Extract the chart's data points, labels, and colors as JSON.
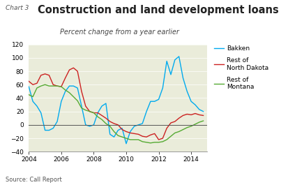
{
  "title": "Construction and land development loans",
  "chart_label": "Chart 3",
  "subtitle": "Percent change from a year earlier",
  "source": "Source: Call Report",
  "background_color": "#eaecda",
  "ylim": [
    -40,
    120
  ],
  "yticks": [
    -40,
    -20,
    0,
    20,
    40,
    60,
    80,
    100,
    120
  ],
  "xlim": [
    2004.0,
    2015.0
  ],
  "xticks": [
    2004,
    2006,
    2008,
    2010,
    2012,
    2014
  ],
  "colors": {
    "bakken": "#00aaee",
    "nd": "#cc2222",
    "mt": "#55aa33"
  },
  "bakken_x": [
    2004.0,
    2004.25,
    2004.5,
    2004.75,
    2005.0,
    2005.25,
    2005.5,
    2005.75,
    2006.0,
    2006.25,
    2006.5,
    2006.75,
    2007.0,
    2007.25,
    2007.5,
    2007.75,
    2008.0,
    2008.25,
    2008.5,
    2008.75,
    2009.0,
    2009.25,
    2009.5,
    2009.75,
    2010.0,
    2010.25,
    2010.5,
    2010.75,
    2011.0,
    2011.25,
    2011.5,
    2011.75,
    2012.0,
    2012.25,
    2012.5,
    2012.75,
    2013.0,
    2013.25,
    2013.5,
    2013.75,
    2014.0,
    2014.25,
    2014.5,
    2014.75
  ],
  "bakken_y": [
    57,
    35,
    28,
    18,
    -8,
    -8,
    -5,
    5,
    35,
    50,
    58,
    58,
    55,
    28,
    0,
    -2,
    0,
    18,
    28,
    32,
    -14,
    -18,
    -8,
    -5,
    -28,
    -10,
    -2,
    0,
    2,
    20,
    35,
    35,
    38,
    55,
    95,
    75,
    97,
    102,
    70,
    50,
    35,
    30,
    23,
    20
  ],
  "nd_x": [
    2004.0,
    2004.25,
    2004.5,
    2004.75,
    2005.0,
    2005.25,
    2005.5,
    2005.75,
    2006.0,
    2006.25,
    2006.5,
    2006.75,
    2007.0,
    2007.25,
    2007.5,
    2007.75,
    2008.0,
    2008.25,
    2008.5,
    2008.75,
    2009.0,
    2009.25,
    2009.5,
    2009.75,
    2010.0,
    2010.25,
    2010.5,
    2010.75,
    2011.0,
    2011.25,
    2011.5,
    2011.75,
    2012.0,
    2012.25,
    2012.5,
    2012.75,
    2013.0,
    2013.25,
    2013.5,
    2013.75,
    2014.0,
    2014.25,
    2014.5,
    2014.75
  ],
  "nd_y": [
    65,
    60,
    62,
    74,
    76,
    74,
    60,
    58,
    57,
    70,
    82,
    85,
    80,
    50,
    28,
    20,
    18,
    18,
    14,
    10,
    5,
    2,
    0,
    -7,
    -10,
    -12,
    -13,
    -14,
    -17,
    -18,
    -15,
    -13,
    -22,
    -20,
    -5,
    3,
    5,
    10,
    14,
    16,
    15,
    17,
    15,
    14
  ],
  "mt_x": [
    2004.0,
    2004.25,
    2004.5,
    2004.75,
    2005.0,
    2005.25,
    2005.5,
    2005.75,
    2006.0,
    2006.25,
    2006.5,
    2006.75,
    2007.0,
    2007.25,
    2007.5,
    2007.75,
    2008.0,
    2008.25,
    2008.5,
    2008.75,
    2009.0,
    2009.25,
    2009.5,
    2009.75,
    2010.0,
    2010.25,
    2010.5,
    2010.75,
    2011.0,
    2011.25,
    2011.5,
    2011.75,
    2012.0,
    2012.25,
    2012.5,
    2012.75,
    2013.0,
    2013.25,
    2013.5,
    2013.75,
    2014.0,
    2014.25,
    2014.5,
    2014.75
  ],
  "mt_y": [
    45,
    42,
    55,
    58,
    60,
    58,
    58,
    58,
    57,
    52,
    48,
    42,
    36,
    25,
    22,
    20,
    18,
    12,
    8,
    2,
    -2,
    -10,
    -16,
    -18,
    -20,
    -22,
    -22,
    -22,
    -25,
    -26,
    -27,
    -26,
    -26,
    -25,
    -22,
    -17,
    -12,
    -10,
    -7,
    -4,
    -2,
    1,
    4,
    6
  ]
}
